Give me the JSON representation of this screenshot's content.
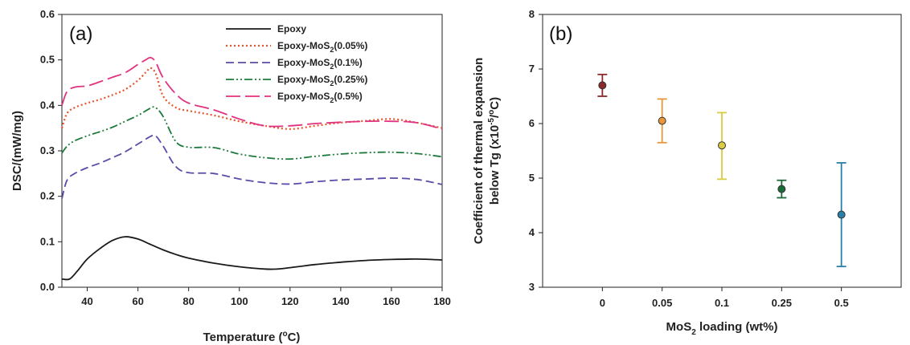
{
  "chart_data": [
    {
      "type": "line",
      "panel_label": "(a)",
      "xlabel": "Temperature (",
      "xlabel_sup": "o",
      "xlabel_end": "C)",
      "ylabel": "DSC/(mW/mg)",
      "xlim": [
        30,
        180
      ],
      "ylim": [
        0.0,
        0.6
      ],
      "xticks": [
        40,
        60,
        80,
        100,
        120,
        140,
        160,
        180
      ],
      "yticks": [
        0.0,
        0.1,
        0.2,
        0.3,
        0.4,
        0.5,
        0.6
      ],
      "legend_position": "top-right",
      "series": [
        {
          "name": "Epoxy",
          "color": "#1a1a1a",
          "dash": "solid",
          "x": [
            30,
            33,
            36,
            40,
            45,
            50,
            55,
            60,
            65,
            70,
            75,
            80,
            90,
            100,
            110,
            115,
            120,
            130,
            140,
            150,
            160,
            170,
            180
          ],
          "y": [
            0.018,
            0.018,
            0.035,
            0.062,
            0.085,
            0.103,
            0.111,
            0.106,
            0.094,
            0.082,
            0.072,
            0.064,
            0.053,
            0.045,
            0.04,
            0.04,
            0.043,
            0.05,
            0.055,
            0.059,
            0.061,
            0.062,
            0.06
          ]
        },
        {
          "name": "Epoxy-MoS2(0.05%)",
          "name_main": "Epoxy-MoS",
          "name_sub": "2",
          "name_end": "(0.05%)",
          "color": "#e8532a",
          "dash": "dot",
          "x": [
            30,
            32,
            35,
            40,
            45,
            50,
            55,
            60,
            63,
            65,
            67,
            70,
            75,
            80,
            90,
            100,
            110,
            120,
            130,
            140,
            150,
            160,
            170,
            180
          ],
          "y": [
            0.35,
            0.382,
            0.395,
            0.405,
            0.413,
            0.423,
            0.435,
            0.455,
            0.472,
            0.482,
            0.47,
            0.42,
            0.395,
            0.388,
            0.378,
            0.365,
            0.355,
            0.348,
            0.355,
            0.362,
            0.366,
            0.37,
            0.362,
            0.35
          ]
        },
        {
          "name": "Epoxy-MoS2(0.1%)",
          "name_main": "Epoxy-MoS",
          "name_sub": "2",
          "name_end": "(0.1%)",
          "color": "#5b4aa8",
          "dash": "dash",
          "x": [
            30,
            32,
            35,
            40,
            45,
            50,
            55,
            60,
            65,
            67,
            70,
            75,
            80,
            90,
            100,
            110,
            120,
            130,
            140,
            150,
            160,
            170,
            180
          ],
          "y": [
            0.195,
            0.235,
            0.25,
            0.263,
            0.273,
            0.285,
            0.298,
            0.315,
            0.332,
            0.333,
            0.31,
            0.265,
            0.252,
            0.25,
            0.238,
            0.23,
            0.227,
            0.232,
            0.236,
            0.238,
            0.24,
            0.237,
            0.226
          ]
        },
        {
          "name": "Epoxy-MoS2(0.25%)",
          "name_main": "Epoxy-MoS",
          "name_sub": "2",
          "name_end": "(0.25%)",
          "color": "#1e7a3c",
          "dash": "dashdotdot",
          "x": [
            30,
            32,
            35,
            40,
            45,
            50,
            55,
            60,
            65,
            67,
            70,
            75,
            80,
            90,
            100,
            110,
            120,
            130,
            140,
            150,
            160,
            170,
            180
          ],
          "y": [
            0.295,
            0.31,
            0.322,
            0.333,
            0.342,
            0.352,
            0.365,
            0.378,
            0.394,
            0.395,
            0.375,
            0.32,
            0.308,
            0.307,
            0.293,
            0.285,
            0.282,
            0.288,
            0.293,
            0.296,
            0.297,
            0.294,
            0.287
          ]
        },
        {
          "name": "Epoxy-MoS2(0.5%)",
          "name_main": "Epoxy-MoS",
          "name_sub": "2",
          "name_end": "(0.5%)",
          "color": "#e0337f",
          "dash": "longdash",
          "x": [
            30,
            32,
            35,
            40,
            45,
            50,
            55,
            60,
            63,
            65,
            67,
            70,
            75,
            80,
            90,
            100,
            110,
            120,
            130,
            140,
            150,
            160,
            170,
            180
          ],
          "y": [
            0.4,
            0.43,
            0.44,
            0.443,
            0.452,
            0.462,
            0.472,
            0.49,
            0.5,
            0.505,
            0.495,
            0.46,
            0.425,
            0.405,
            0.39,
            0.37,
            0.355,
            0.355,
            0.36,
            0.363,
            0.365,
            0.365,
            0.362,
            0.348
          ]
        }
      ]
    },
    {
      "type": "scatter",
      "panel_label": "(b)",
      "xlabel": "MoS",
      "xlabel_sub": "2",
      "xlabel_end": " loading (wt%)",
      "ylabel_line1": "Coefficient of thermal expansion",
      "ylabel_line2_start": "below Tg (x10",
      "ylabel_line2_sup": "-5",
      "ylabel_line2_mid": "/",
      "ylabel_line2_sup2": "o",
      "ylabel_line2_end": "C)",
      "categories": [
        "0",
        "0.05",
        "0.1",
        "0.25",
        "0.5"
      ],
      "ylim": [
        3,
        8
      ],
      "yticks": [
        3,
        4,
        5,
        6,
        7,
        8
      ],
      "points": [
        {
          "value": 6.7,
          "err_low": 6.5,
          "err_high": 6.9,
          "color": "#8b2a2a"
        },
        {
          "value": 6.05,
          "err_low": 5.65,
          "err_high": 6.45,
          "color": "#e8963a"
        },
        {
          "value": 5.6,
          "err_low": 4.98,
          "err_high": 6.2,
          "color": "#d9cc40"
        },
        {
          "value": 4.8,
          "err_low": 4.64,
          "err_high": 4.96,
          "color": "#1a6b3a"
        },
        {
          "value": 4.33,
          "err_low": 3.38,
          "err_high": 5.28,
          "color": "#2a7fa8"
        }
      ]
    }
  ]
}
